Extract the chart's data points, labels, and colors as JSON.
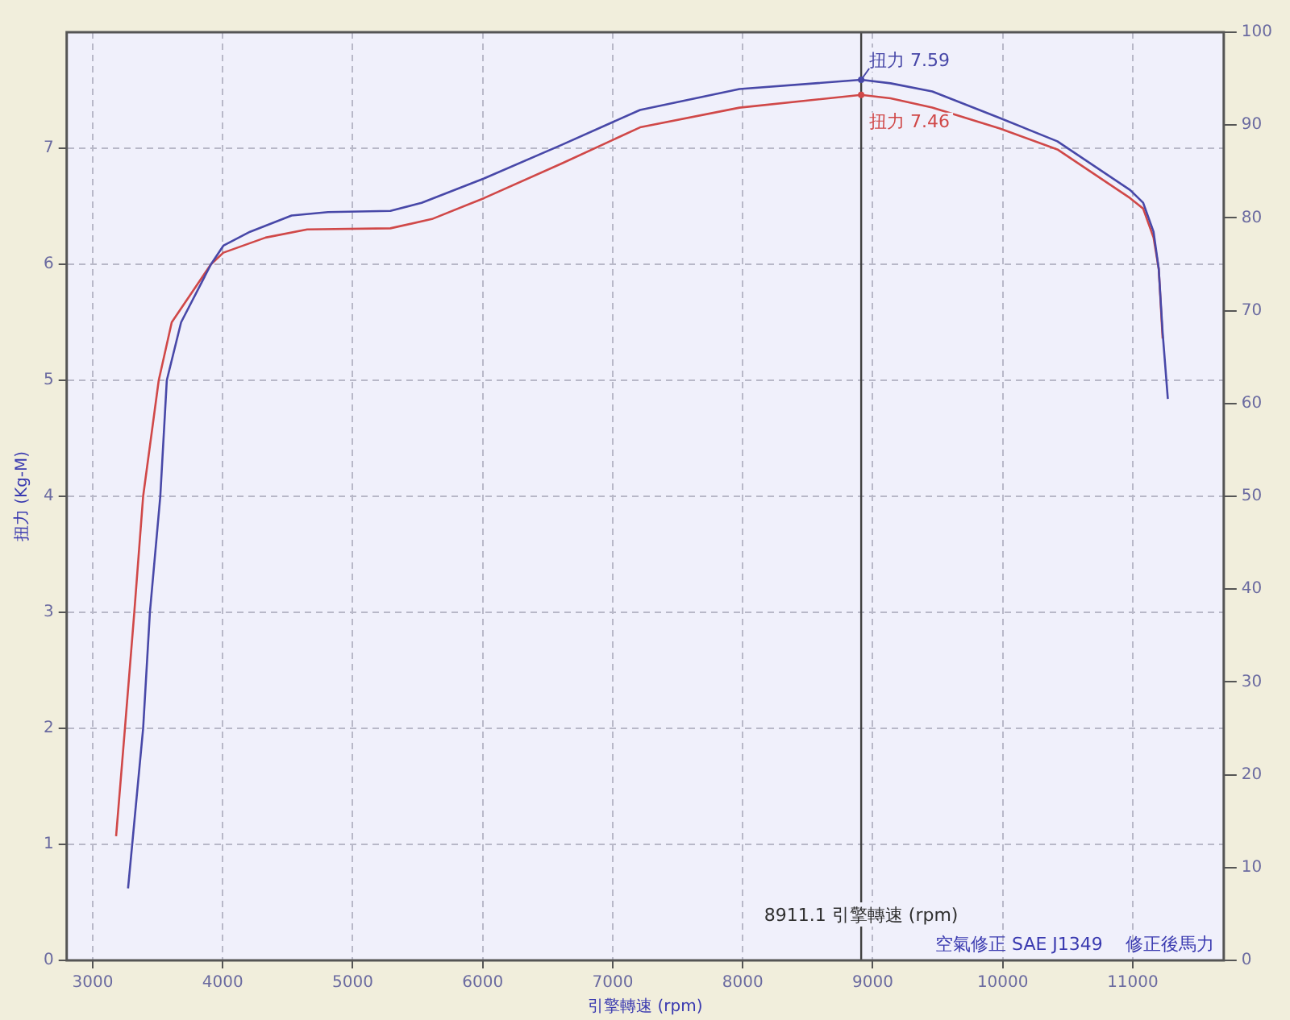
{
  "chart_data": {
    "type": "line",
    "xlabel": "引擎轉速 (rpm)",
    "ylabel": "扭力 (Kg-M)",
    "xlim": [
      2800,
      11700
    ],
    "xticks": [
      3000,
      4000,
      5000,
      6000,
      7000,
      8000,
      9000,
      10000,
      11000
    ],
    "ylim": [
      0,
      8
    ],
    "yticks": [
      0,
      1,
      2,
      3,
      4,
      5,
      6,
      7
    ],
    "y2lim": [
      0,
      100
    ],
    "y2ticks": [
      0,
      10,
      20,
      30,
      40,
      50,
      60,
      70,
      80,
      90,
      100
    ],
    "grid": true,
    "legend": false,
    "marker": "none",
    "line_style": "solid",
    "series": [
      {
        "color": "#4848a8",
        "x": [
          3272,
          3388,
          3440,
          3520,
          3570,
          3680,
          3910,
          4005,
          4210,
          4530,
          4810,
          5290,
          5530,
          6010,
          6610,
          7210,
          7975,
          8911.1,
          9137,
          9458,
          9978,
          10420,
          10980,
          11080,
          11160,
          11200,
          11230,
          11270
        ],
        "values": [
          0.62,
          2,
          3,
          4,
          5,
          5.5,
          6,
          6.16,
          6.28,
          6.42,
          6.45,
          6.46,
          6.53,
          6.74,
          7.03,
          7.33,
          7.51,
          7.59,
          7.56,
          7.49,
          7.26,
          7.06,
          6.64,
          6.53,
          6.28,
          5.96,
          5.41,
          4.84
        ]
      },
      {
        "color": "#d04848",
        "x": [
          3180,
          3248,
          3320,
          3388,
          3508,
          3608,
          3910,
          4005,
          4330,
          4650,
          5290,
          5610,
          6010,
          6610,
          7210,
          7975,
          8911.1,
          9137,
          9458,
          9978,
          10420,
          10980,
          11080,
          11160,
          11200,
          11230
        ],
        "values": [
          1.07,
          2,
          3,
          4,
          5,
          5.5,
          6,
          6.1,
          6.23,
          6.3,
          6.31,
          6.39,
          6.57,
          6.87,
          7.18,
          7.35,
          7.46,
          7.43,
          7.35,
          7.17,
          6.99,
          6.57,
          6.48,
          6.23,
          5.96,
          5.36
        ]
      }
    ],
    "ref_lines": [
      {
        "axis": "x",
        "value": 8911.1,
        "label": "8911.1 引擎轉速 (rpm)",
        "color": "#404040"
      }
    ],
    "annotations": [
      {
        "text": "扭力 7.59",
        "x": 8911.1,
        "y": 7.59
      },
      {
        "text": "扭力 7.46",
        "x": 8911.1,
        "y": 7.46
      },
      "空氣修正 SAE J1349",
      "修正後馬力"
    ]
  }
}
